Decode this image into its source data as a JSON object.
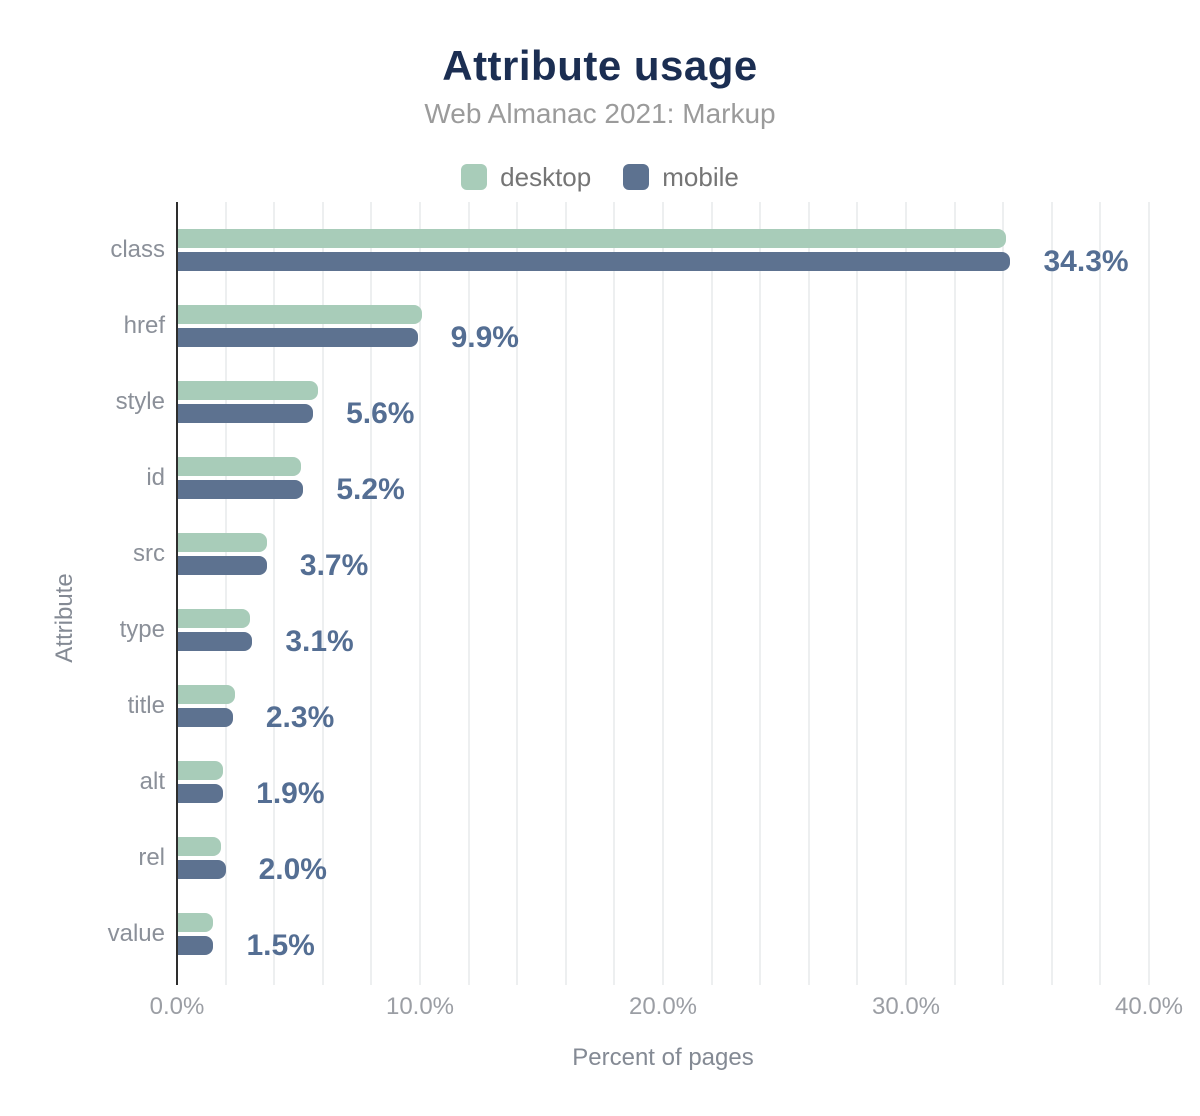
{
  "header": {
    "title": "Attribute usage",
    "subtitle": "Web Almanac 2021: Markup"
  },
  "chart_data": {
    "type": "bar",
    "orientation": "horizontal",
    "title": "Attribute usage",
    "subtitle": "Web Almanac 2021: Markup",
    "xlabel": "Percent of pages",
    "ylabel": "Attribute",
    "categories": [
      "class",
      "href",
      "style",
      "id",
      "src",
      "type",
      "title",
      "alt",
      "rel",
      "value"
    ],
    "series": [
      {
        "name": "desktop",
        "color": "#a8ccb9",
        "values": [
          34.1,
          10.1,
          5.8,
          5.1,
          3.7,
          3.0,
          2.4,
          1.9,
          1.8,
          1.5
        ]
      },
      {
        "name": "mobile",
        "color": "#5d7290",
        "values": [
          34.3,
          9.9,
          5.6,
          5.2,
          3.7,
          3.1,
          2.3,
          1.9,
          2.0,
          1.5
        ]
      }
    ],
    "data_labels": [
      "34.3%",
      "9.9%",
      "5.6%",
      "5.2%",
      "3.7%",
      "3.1%",
      "2.3%",
      "1.9%",
      "2.0%",
      "1.5%"
    ],
    "xlim": [
      0,
      40
    ],
    "gridline_step": 2,
    "x_ticks": [
      {
        "value": 0,
        "label": "0.0%"
      },
      {
        "value": 10,
        "label": "10.0%"
      },
      {
        "value": 20,
        "label": "20.0%"
      },
      {
        "value": 30,
        "label": "30.0%"
      },
      {
        "value": 40,
        "label": "40.0%"
      }
    ],
    "grid": true,
    "legend_position": "top"
  },
  "colors": {
    "title": "#1b2e52",
    "subtitle": "#9b9b9b",
    "legend_label": "#757575",
    "category_label": "#8b9099",
    "data_label": "#546e93",
    "tick_label": "#9b9ea4",
    "axis_title": "#848a94",
    "axis_line": "#2e2e2e",
    "gridline": "#edeff0",
    "background": "#ffffff"
  }
}
